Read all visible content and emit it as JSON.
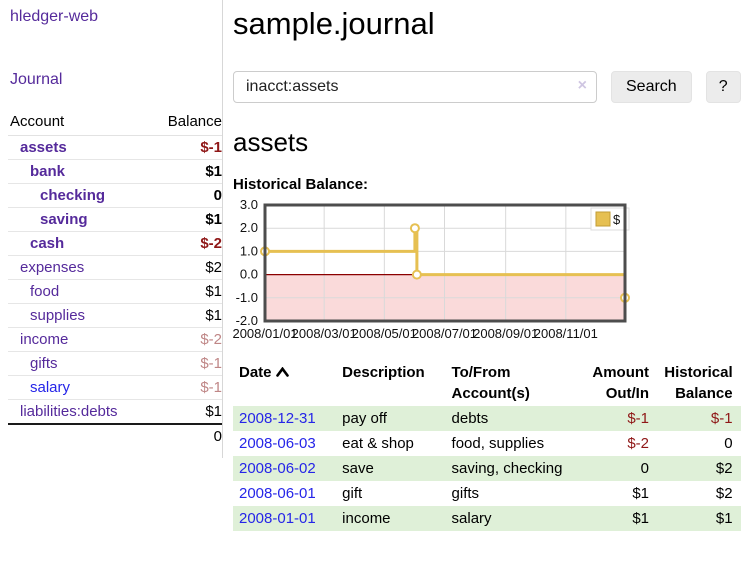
{
  "colors": {
    "link_purple": "#552a9b",
    "link_blue": "#2525e8",
    "negative_strong": "#8f1717",
    "negative_weak": "#bf8686",
    "row_stripe_green": "#dff0d8",
    "chart_gold": "#e6c052",
    "chart_negative_region": "#fadada",
    "chart_zero_line": "#8b0000",
    "chart_border": "#4d4d4d",
    "chart_grid": "#d9d9d9"
  },
  "sidebar": {
    "brand": "hledger-web",
    "journal_label": "Journal",
    "header": {
      "account": "Account",
      "balance": "Balance"
    },
    "accounts": [
      {
        "name": "assets",
        "indent": 1,
        "balance": "$-1",
        "bold": true,
        "balance_class": "neg-strong",
        "unvisited": false
      },
      {
        "name": "bank",
        "indent": 2,
        "balance": "$1",
        "bold": true,
        "balance_class": "",
        "unvisited": false
      },
      {
        "name": "checking",
        "indent": 3,
        "balance": "0",
        "bold": true,
        "balance_class": "",
        "unvisited": false
      },
      {
        "name": "saving",
        "indent": 3,
        "balance": "$1",
        "bold": true,
        "balance_class": "",
        "unvisited": false
      },
      {
        "name": "cash",
        "indent": 2,
        "balance": "$-2",
        "bold": true,
        "balance_class": "neg-strong",
        "unvisited": false
      },
      {
        "name": "expenses",
        "indent": 1,
        "balance": "$2",
        "bold": false,
        "balance_class": "",
        "unvisited": false
      },
      {
        "name": "food",
        "indent": 2,
        "balance": "$1",
        "bold": false,
        "balance_class": "",
        "unvisited": false
      },
      {
        "name": "supplies",
        "indent": 2,
        "balance": "$1",
        "bold": false,
        "balance_class": "",
        "unvisited": false
      },
      {
        "name": "income",
        "indent": 1,
        "balance": "$-2",
        "bold": false,
        "balance_class": "neg-weak",
        "unvisited": false
      },
      {
        "name": "gifts",
        "indent": 2,
        "balance": "$-1",
        "bold": false,
        "balance_class": "neg-weak",
        "unvisited": false
      },
      {
        "name": "salary",
        "indent": 2,
        "balance": "$-1",
        "bold": false,
        "balance_class": "neg-weak",
        "unvisited": true
      },
      {
        "name": "liabilities:debts",
        "indent": 1,
        "balance": "$1",
        "bold": false,
        "balance_class": "",
        "unvisited": false
      }
    ],
    "total": "0"
  },
  "header": {
    "title": "sample.journal"
  },
  "search": {
    "value": "inacct:assets",
    "clear_icon": "×",
    "button_label": "Search",
    "help_label": "?"
  },
  "account_page": {
    "title": "assets",
    "chart_label": "Historical Balance:",
    "sort_icon": "chevron-up"
  },
  "chart_data": {
    "type": "line",
    "title": "Historical Balance:",
    "step": true,
    "series": [
      {
        "name": "$",
        "color": "#e6c052",
        "points": [
          {
            "date": "2008-01-01",
            "value": 1
          },
          {
            "date": "2008-06-01",
            "value": 2
          },
          {
            "date": "2008-06-03",
            "value": 0
          },
          {
            "date": "2008-12-31",
            "value": -1
          }
        ]
      }
    ],
    "x_range": [
      "2008-01-01",
      "2008-12-31"
    ],
    "x_ticks": [
      "2008/01/01",
      "2008/03/01",
      "2008/05/01",
      "2008/07/01",
      "2008/09/01",
      "2008/11/01"
    ],
    "y_ticks": [
      3.0,
      2.0,
      1.0,
      0.0,
      -1.0,
      -2.0
    ],
    "ylim": [
      -2.0,
      3.0
    ],
    "grid": true,
    "negative_region_color": "#fadada",
    "zero_line_color": "#8b0000",
    "legend": {
      "label": "$",
      "position": "top-right"
    }
  },
  "register": {
    "headers": [
      "Date",
      "Description",
      "To/From Account(s)",
      "Amount Out/In",
      "Historical Balance"
    ],
    "rows": [
      {
        "date": "2008-12-31",
        "description": "pay off",
        "accounts": "debts",
        "amount": "$-1",
        "amount_class": "neg-strong",
        "balance": "$-1",
        "balance_class": "neg-strong"
      },
      {
        "date": "2008-06-03",
        "description": "eat & shop",
        "accounts": "food, supplies",
        "amount": "$-2",
        "amount_class": "neg-strong",
        "balance": "0",
        "balance_class": ""
      },
      {
        "date": "2008-06-02",
        "description": "save",
        "accounts": "saving, checking",
        "amount": "0",
        "amount_class": "",
        "balance": "$2",
        "balance_class": ""
      },
      {
        "date": "2008-06-01",
        "description": "gift",
        "accounts": "gifts",
        "amount": "$1",
        "amount_class": "",
        "balance": "$2",
        "balance_class": ""
      },
      {
        "date": "2008-01-01",
        "description": "income",
        "accounts": "salary",
        "amount": "$1",
        "amount_class": "",
        "balance": "$1",
        "balance_class": ""
      }
    ]
  }
}
